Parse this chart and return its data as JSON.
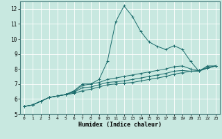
{
  "title": "",
  "xlabel": "Humidex (Indice chaleur)",
  "xlim": [
    -0.5,
    23.5
  ],
  "ylim": [
    5,
    12.5
  ],
  "yticks": [
    5,
    6,
    7,
    8,
    9,
    10,
    11,
    12
  ],
  "xticks": [
    0,
    1,
    2,
    3,
    4,
    5,
    6,
    7,
    8,
    9,
    10,
    11,
    12,
    13,
    14,
    15,
    16,
    17,
    18,
    19,
    20,
    21,
    22,
    23
  ],
  "background_color": "#c8e8e0",
  "grid_color": "#ffffff",
  "line_color": "#1a6b6b",
  "lines": [
    {
      "x": [
        0,
        1,
        2,
        3,
        4,
        5,
        6,
        7,
        8,
        9,
        10,
        11,
        12,
        13,
        14,
        15,
        16,
        17,
        18,
        19,
        20,
        21,
        22,
        23
      ],
      "y": [
        5.5,
        5.6,
        5.85,
        6.1,
        6.2,
        6.3,
        6.55,
        7.0,
        7.0,
        7.3,
        8.5,
        11.15,
        12.2,
        11.5,
        10.5,
        9.8,
        9.5,
        9.3,
        9.55,
        9.3,
        8.5,
        7.85,
        8.2,
        8.2
      ]
    },
    {
      "x": [
        0,
        1,
        2,
        3,
        4,
        5,
        6,
        7,
        8,
        9,
        10,
        11,
        12,
        13,
        14,
        15,
        16,
        17,
        18,
        19,
        20,
        21,
        22,
        23
      ],
      "y": [
        5.5,
        5.6,
        5.85,
        6.1,
        6.2,
        6.3,
        6.5,
        6.9,
        7.0,
        7.1,
        7.3,
        7.4,
        7.5,
        7.6,
        7.7,
        7.8,
        7.9,
        8.0,
        8.15,
        8.2,
        8.0,
        7.9,
        8.1,
        8.2
      ]
    },
    {
      "x": [
        0,
        1,
        2,
        3,
        4,
        5,
        6,
        7,
        8,
        9,
        10,
        11,
        12,
        13,
        14,
        15,
        16,
        17,
        18,
        19,
        20,
        21,
        22,
        23
      ],
      "y": [
        5.5,
        5.6,
        5.85,
        6.1,
        6.2,
        6.3,
        6.45,
        6.75,
        6.8,
        6.95,
        7.1,
        7.15,
        7.2,
        7.3,
        7.4,
        7.5,
        7.6,
        7.7,
        7.85,
        7.9,
        7.85,
        7.85,
        8.05,
        8.2
      ]
    },
    {
      "x": [
        0,
        1,
        2,
        3,
        4,
        5,
        6,
        7,
        8,
        9,
        10,
        11,
        12,
        13,
        14,
        15,
        16,
        17,
        18,
        19,
        20,
        21,
        22,
        23
      ],
      "y": [
        5.5,
        5.6,
        5.85,
        6.1,
        6.2,
        6.28,
        6.38,
        6.55,
        6.65,
        6.8,
        6.95,
        7.0,
        7.05,
        7.1,
        7.2,
        7.3,
        7.4,
        7.5,
        7.65,
        7.75,
        7.85,
        7.9,
        8.05,
        8.2
      ]
    }
  ]
}
